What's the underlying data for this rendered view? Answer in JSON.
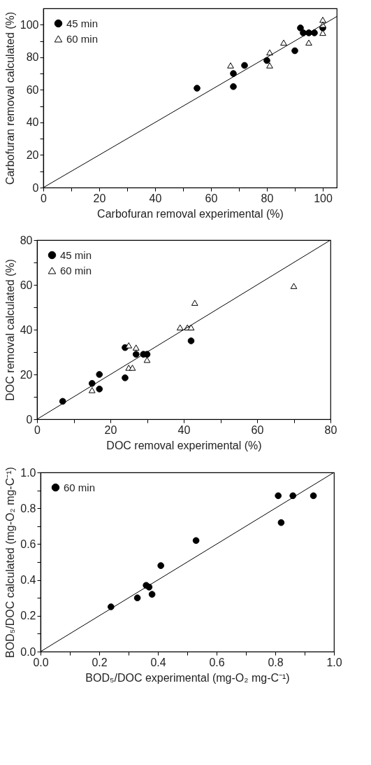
{
  "chart_data": [
    {
      "type": "scatter",
      "xlabel": "Carbofuran removal experimental (%)",
      "ylabel": "Carbofuran removal calculated (%)",
      "xlim": [
        0,
        105
      ],
      "ylim": [
        0,
        110
      ],
      "xticks": [
        0,
        {
          "value": 10,
          "label": null
        },
        20,
        {
          "value": 30,
          "label": null
        },
        40,
        {
          "value": 50,
          "label": null
        },
        60,
        {
          "value": 70,
          "label": null
        },
        80,
        {
          "value": 90,
          "label": null
        },
        100
      ],
      "yticks": [
        0,
        {
          "value": 10,
          "label": null
        },
        20,
        {
          "value": 30,
          "label": null
        },
        40,
        {
          "value": 50,
          "label": null
        },
        60,
        {
          "value": 70,
          "label": null
        },
        80,
        {
          "value": 90,
          "label": null
        },
        100
      ],
      "grid": false,
      "legend": "top left",
      "series": [
        {
          "name": "45 min",
          "color": "#000000",
          "marker": "circle",
          "x": [
            55,
            68,
            68,
            72,
            80,
            90,
            92,
            93,
            95,
            97,
            100
          ],
          "values": [
            61,
            70,
            62,
            75,
            78,
            84,
            98,
            95,
            95,
            95,
            98
          ]
        },
        {
          "name": "60 min",
          "color": "#000000",
          "marker": "triangle",
          "x": [
            67,
            81,
            81,
            86,
            95,
            100,
            100,
            100
          ],
          "values": [
            75,
            83,
            75,
            89,
            89,
            103,
            100,
            95
          ]
        },
        {
          "type": "line",
          "color": "#000000",
          "x": [
            0,
            105
          ],
          "values": [
            0,
            105
          ]
        }
      ]
    },
    {
      "type": "scatter",
      "xlabel": "DOC removal experimental (%)",
      "ylabel": "DOC removal calculated (%)",
      "xlim": [
        0,
        80
      ],
      "ylim": [
        0,
        80
      ],
      "xticks": [
        0,
        {
          "value": 10,
          "label": null
        },
        20,
        {
          "value": 30,
          "label": null
        },
        40,
        {
          "value": 50,
          "label": null
        },
        60,
        {
          "value": 70,
          "label": null
        },
        80
      ],
      "yticks": [
        0,
        {
          "value": 10,
          "label": null
        },
        20,
        {
          "value": 30,
          "label": null
        },
        40,
        {
          "value": 50,
          "label": null
        },
        60,
        {
          "value": 70,
          "label": null
        },
        80
      ],
      "grid": false,
      "legend": "top left",
      "series": [
        {
          "name": "45 min",
          "color": "#000000",
          "marker": "circle",
          "x": [
            7,
            15,
            17,
            17,
            24,
            24,
            27,
            29,
            30,
            42
          ],
          "values": [
            8,
            16,
            20,
            13.5,
            32,
            18.5,
            29,
            29,
            29,
            35
          ]
        },
        {
          "name": "60 min",
          "color": "#000000",
          "marker": "triangle",
          "x": [
            15,
            25,
            27,
            25,
            26,
            30,
            39,
            41,
            42,
            43,
            70
          ],
          "values": [
            13,
            33,
            32,
            23,
            23,
            26.5,
            41,
            41,
            41,
            52,
            59.5
          ]
        },
        {
          "type": "line",
          "color": "#000000",
          "x": [
            0,
            80
          ],
          "values": [
            0,
            80
          ]
        }
      ]
    },
    {
      "type": "scatter",
      "xlabel": "BOD₅/DOC experimental (mg-O₂ mg-C⁻¹)",
      "ylabel": "BOD₅/DOC calculated (mg-O₂ mg-C⁻¹)",
      "xlim": [
        0,
        1
      ],
      "ylim": [
        0,
        1
      ],
      "xticks": [
        {
          "value": 0,
          "label": "0.0"
        },
        {
          "value": 0.1,
          "label": null
        },
        {
          "value": 0.2,
          "label": "0.2"
        },
        {
          "value": 0.3,
          "label": null
        },
        {
          "value": 0.4,
          "label": "0.4"
        },
        {
          "value": 0.5,
          "label": null
        },
        {
          "value": 0.6,
          "label": "0.6"
        },
        {
          "value": 0.7,
          "label": null
        },
        {
          "value": 0.8,
          "label": "0.8"
        },
        {
          "value": 0.9,
          "label": null
        },
        {
          "value": 1,
          "label": "1.0"
        }
      ],
      "yticks": [
        {
          "value": 0,
          "label": "0.0"
        },
        {
          "value": 0.1,
          "label": null
        },
        {
          "value": 0.2,
          "label": "0.2"
        },
        {
          "value": 0.3,
          "label": null
        },
        {
          "value": 0.4,
          "label": "0.4"
        },
        {
          "value": 0.5,
          "label": null
        },
        {
          "value": 0.6,
          "label": "0.6"
        },
        {
          "value": 0.7,
          "label": null
        },
        {
          "value": 0.8,
          "label": "0.8"
        },
        {
          "value": 0.9,
          "label": null
        },
        {
          "value": 1,
          "label": "1.0"
        }
      ],
      "grid": false,
      "legend": "top left",
      "series": [
        {
          "name": "60 min",
          "color": "#000000",
          "marker": "circle",
          "x": [
            0.24,
            0.33,
            0.36,
            0.37,
            0.38,
            0.41,
            0.53,
            0.81,
            0.82,
            0.86,
            0.93
          ],
          "values": [
            0.25,
            0.3,
            0.37,
            0.36,
            0.32,
            0.48,
            0.62,
            0.87,
            0.72,
            0.87,
            0.87
          ]
        },
        {
          "type": "line",
          "color": "#000000",
          "x": [
            0,
            1
          ],
          "values": [
            0,
            1
          ]
        }
      ]
    }
  ]
}
